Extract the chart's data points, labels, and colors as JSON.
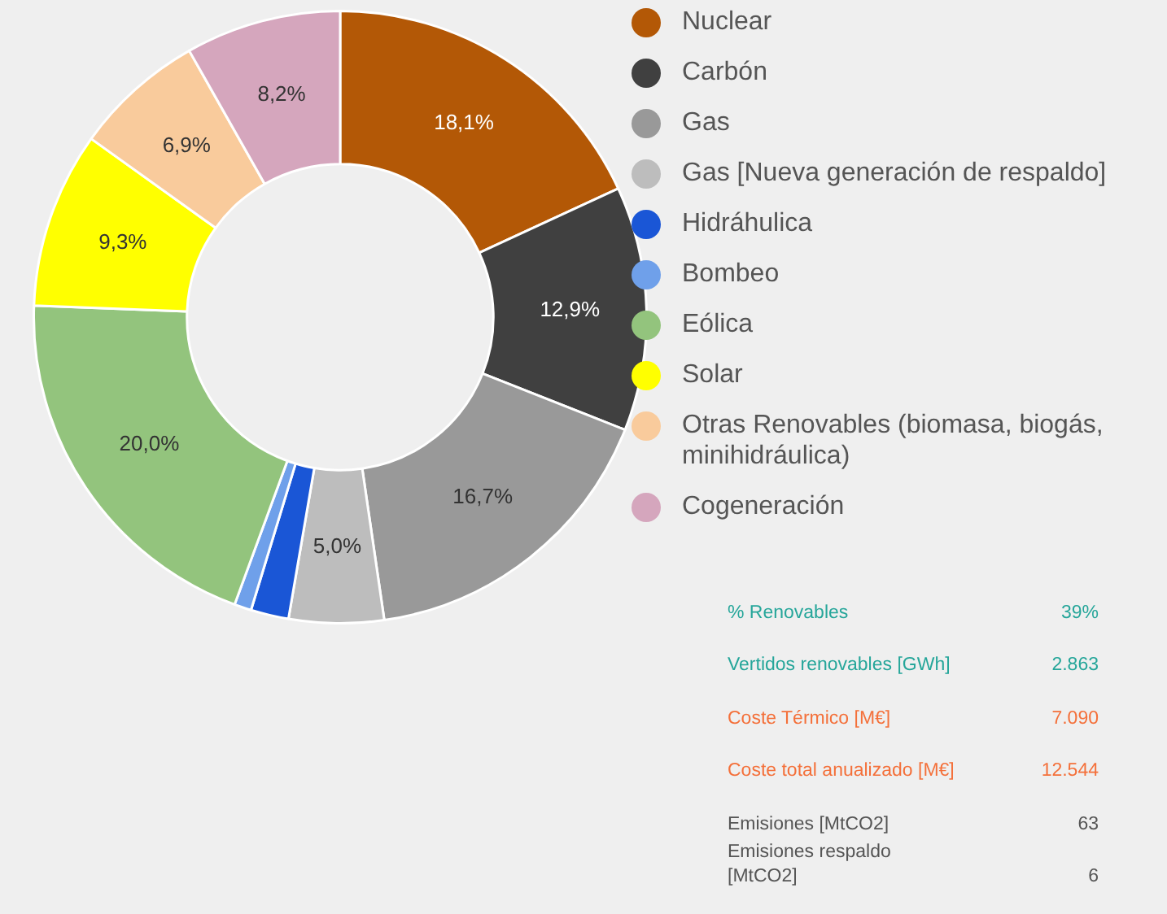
{
  "chart_data": {
    "type": "donut",
    "categories": [
      "Nuclear",
      "Carbón",
      "Gas",
      "Gas [Nueva generación de respaldo]",
      "Hidráhulica",
      "Bombeo",
      "Eólica",
      "Solar",
      "Otras Renovables (biomasa, biogás, minihidráulica)",
      "Cogeneración"
    ],
    "values": [
      18.1,
      12.9,
      16.7,
      5.0,
      2.0,
      0.9,
      20.0,
      9.3,
      6.9,
      8.2
    ],
    "colors": [
      "#b35806",
      "#404040",
      "#999999",
      "#bdbdbd",
      "#1a56d6",
      "#6fa0ea",
      "#93c47d",
      "#ffff00",
      "#f9cb9c",
      "#d5a6bd"
    ],
    "value_labels": [
      "18,1%",
      "12,9%",
      "16,7%",
      "5,0%",
      null,
      null,
      "20,0%",
      "9,3%",
      "6,9%",
      "8,2%"
    ],
    "legend": "right",
    "annotations": [
      "% Renovables",
      "39%",
      "Vertidos renovables [GWh]",
      "2.863",
      "Coste Térmico [M€]",
      "7.090",
      "Coste total anualizado [M€]",
      "12.544",
      "Emisiones [MtCO2]",
      "63",
      "Emisiones respaldo [MtCO2]",
      "6"
    ]
  }
}
